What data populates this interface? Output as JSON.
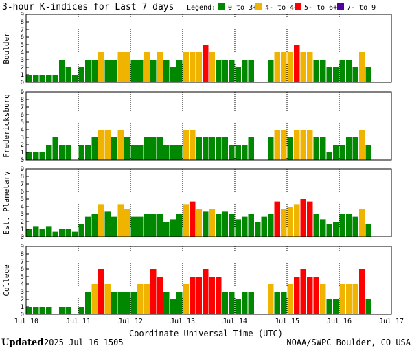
{
  "chart_data": {
    "type": "bar",
    "title": "3-hour K-indices for Last 7 days",
    "legend": {
      "label": "Legend:",
      "items": [
        {
          "label": "0 to 3+",
          "color": "#008800"
        },
        {
          "label": "4- to 4+",
          "color": "#f0b400"
        },
        {
          "label": "5- to 6+",
          "color": "#ff0000"
        },
        {
          "label": "7- to 9",
          "color": "#5000a0"
        }
      ]
    },
    "xlabel": "Coordinate Universal Time (UTC)",
    "x_ticks": [
      "Jul 10",
      "Jul 11",
      "Jul 12",
      "Jul 13",
      "Jul 14",
      "Jul 15",
      "Jul 16",
      "Jul 17"
    ],
    "ylim": [
      0,
      9
    ],
    "y_ticks": [
      0,
      1,
      2,
      3,
      4,
      5,
      6,
      7,
      8,
      9
    ],
    "intervals_per_day": 8,
    "series": [
      {
        "name": "Boulder",
        "values": [
          1,
          1,
          1,
          1,
          1,
          3,
          2,
          1,
          2,
          3,
          3,
          4,
          3,
          3,
          4,
          4,
          3,
          3,
          4,
          3,
          4,
          3,
          2,
          3,
          4,
          4,
          4,
          5,
          4,
          3,
          3,
          3,
          2,
          3,
          3,
          0,
          0,
          3,
          4,
          4,
          4,
          5,
          4,
          4,
          3,
          3,
          2,
          2,
          3,
          3,
          2,
          4,
          2,
          0,
          0,
          0
        ]
      },
      {
        "name": "Fredericksburg",
        "values": [
          1,
          1,
          1,
          2,
          3,
          2,
          2,
          0,
          2,
          2,
          3,
          4,
          4,
          3,
          4,
          3,
          2,
          2,
          3,
          3,
          3,
          2,
          2,
          2,
          4,
          4,
          3,
          3,
          3,
          3,
          3,
          2,
          2,
          2,
          3,
          0,
          0,
          3,
          4,
          4,
          3,
          4,
          4,
          4,
          3,
          3,
          1,
          2,
          2,
          3,
          3,
          4,
          2,
          0,
          0,
          0
        ]
      },
      {
        "name": "Est. Planetary",
        "values": [
          1,
          1.33,
          1,
          1.33,
          0.67,
          1,
          1,
          0.67,
          1.67,
          2.67,
          3,
          4.33,
          3.33,
          2.67,
          4.33,
          3.67,
          2.67,
          2.67,
          3,
          3,
          3,
          2,
          2.33,
          3,
          4.33,
          4.67,
          3.67,
          3.33,
          3.67,
          3,
          3.33,
          3,
          2.33,
          2.67,
          3,
          2,
          2.67,
          3,
          4.67,
          3.67,
          4,
          4.33,
          5,
          4.67,
          3,
          2.33,
          1.67,
          2,
          3,
          3,
          2.67,
          3.67,
          1.67,
          0,
          0,
          0
        ]
      },
      {
        "name": "College",
        "values": [
          1,
          1,
          1,
          1,
          0,
          1,
          1,
          0,
          1,
          3,
          4,
          6,
          4,
          3,
          3,
          3,
          3,
          4,
          4,
          6,
          5,
          3,
          2,
          3,
          4,
          5,
          5,
          6,
          5,
          5,
          3,
          3,
          2,
          3,
          3,
          0,
          0,
          4,
          3,
          3,
          4,
          5,
          6,
          5,
          5,
          4,
          2,
          2,
          4,
          4,
          4,
          6,
          2,
          0,
          0,
          0
        ]
      }
    ]
  },
  "footer": {
    "updated_label": "Updated",
    "updated_time": "2025 Jul 16 1505",
    "source": "NOAA/SWPC Boulder, CO USA"
  }
}
